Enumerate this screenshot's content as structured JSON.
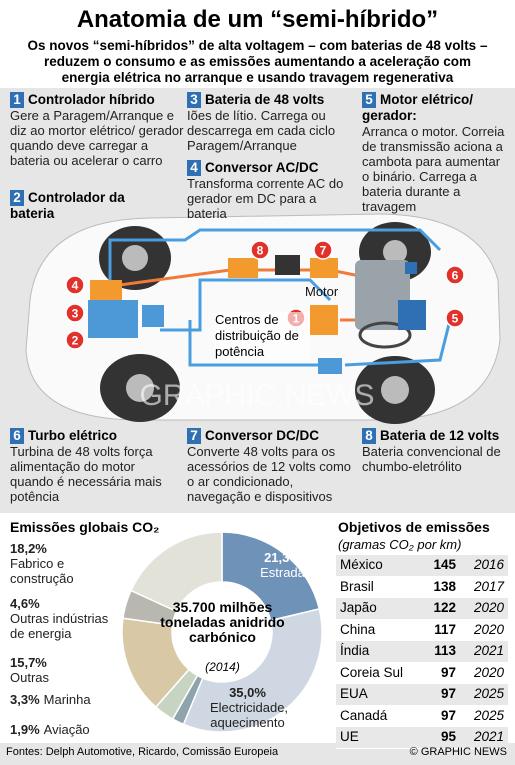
{
  "header": {
    "title": "Anatomia de um “semi-híbrido”",
    "subtitle": "Os novos “semi-híbridos” de alta voltagem – com baterias de 48 volts – reduzem o consumo e as emissões aumentando a aceleração com energia elétrica no arranque e usando travagem regenerativa"
  },
  "components": [
    {
      "number": "1",
      "title": "Controlador híbrido",
      "text": "Gere a Paragem/Arranque e diz ao mortor elétrico/ gerador quando deve carregar a bateria ou acelerar o carro"
    },
    {
      "number": "2",
      "title": "Controlador da bateria"
    },
    {
      "number": "3",
      "title": "Bateria de 48 volts",
      "text": "Iões de lítio. Carrega ou descarrega em cada ciclo Paragem/Arranque"
    },
    {
      "number": "4",
      "title": "Conversor AC/DC",
      "text": "Transforma corrente AC do gerador em DC para a bateria"
    },
    {
      "number": "5",
      "title": "Motor elétrico/ gerador:",
      "text": "Arranca o motor. Correia de transmissão aciona a cambota para aumentar o binário. Carrega a bateria durante a travagem"
    },
    {
      "number": "6",
      "title": "Turbo elétrico",
      "text": "Turbina de 48 volts força alimentação do motor quando é necessária mais potência"
    },
    {
      "number": "7",
      "title": "Conversor DC/DC",
      "text": "Converte 48 volts para os acessórios de 12 volts como o ar condicionado, navegação e dispositivos"
    },
    {
      "number": "8",
      "title": "Bateria de 12 volts",
      "text": "Bateria convencional de chumbo-eletrólito"
    }
  ],
  "diagram": {
    "motor_label": "Motor",
    "distribution_label": "Centros de distribuição de potência",
    "watermark": "GRAPHIC NEWS"
  },
  "emissions": {
    "title": "Emissões globais CO₂",
    "center": "35.700 milhões toneladas anidrido carbónico",
    "center_year": "(2014)",
    "segments": [
      {
        "name": "Estrada",
        "value": 21.3,
        "label": "21,3%",
        "color": "#6e92b8"
      },
      {
        "name": "Electricidade, aquecimento",
        "value": 35.0,
        "label": "35,0%",
        "color": "#cfd8e2"
      },
      {
        "name": "Aviação",
        "value": 1.9,
        "label": "1,9%",
        "color": "#8fa3ad"
      },
      {
        "name": "Marinha",
        "value": 3.3,
        "label": "3,3%",
        "color": "#c8d4c2"
      },
      {
        "name": "Outras",
        "value": 15.7,
        "label": "15,7%",
        "color": "#d8c8a6"
      },
      {
        "name": "Outras indústrias de energia",
        "value": 4.6,
        "label": "4,6%",
        "color": "#b8b8b0"
      },
      {
        "name": "Fabrico e construção",
        "value": 18.2,
        "label": "18,2%",
        "color": "#e2e2d8"
      }
    ]
  },
  "targets": {
    "title": "Objetivos de emissões",
    "subtitle": "(gramas CO₂ por km)",
    "rows": [
      [
        "México",
        "145",
        "2016"
      ],
      [
        "Brasil",
        "138",
        "2017"
      ],
      [
        "Japão",
        "122",
        "2020"
      ],
      [
        "China",
        "117",
        "2020"
      ],
      [
        "Índia",
        "113",
        "2021"
      ],
      [
        "Coreia Sul",
        "97",
        "2020"
      ],
      [
        "EUA",
        "97",
        "2025"
      ],
      [
        "Canadá",
        "97",
        "2025"
      ],
      [
        "UE",
        "95",
        "2021"
      ]
    ]
  },
  "footer": {
    "sources": "Fontes: Delph Automotive, Ricardo, Comissão Europeia",
    "credit": "© GRAPHIC NEWS"
  }
}
